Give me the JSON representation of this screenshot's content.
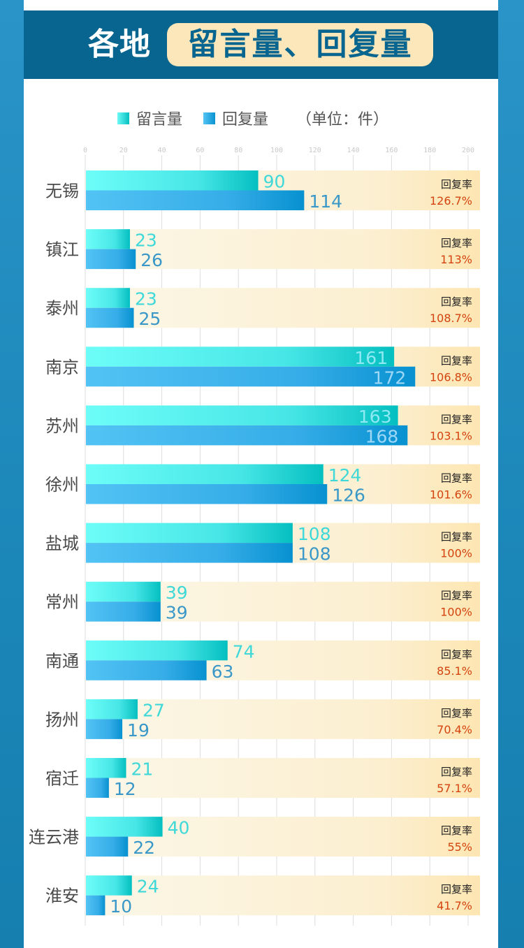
{
  "header": {
    "title_prefix": "各地",
    "title_highlight": "留言量、回复量"
  },
  "legend": {
    "items": [
      {
        "label": "留言量",
        "color": "#2fd6d8"
      },
      {
        "label": "回复量",
        "color": "#1aa5e0"
      }
    ],
    "unit": "（单位：件）"
  },
  "colors": {
    "frame": "#2a94c8",
    "header_bg": "#08658f",
    "pill_bg": "#fbe7b9",
    "rate_value": "#d4430f"
  },
  "chart_data": {
    "type": "bar",
    "orientation": "horizontal",
    "title": "各地留言量、回复量",
    "unit": "件",
    "xlim": [
      0,
      200
    ],
    "xticks": [
      0,
      20,
      40,
      60,
      80,
      100,
      120,
      140,
      160,
      180,
      200
    ],
    "grid": true,
    "legend_position": "top",
    "rate_label": "回复率",
    "categories": [
      "无锡",
      "镇江",
      "泰州",
      "南京",
      "苏州",
      "徐州",
      "盐城",
      "常州",
      "南通",
      "扬州",
      "宿迁",
      "连云港",
      "淮安"
    ],
    "series": [
      {
        "name": "留言量",
        "values": [
          90,
          23,
          23,
          161,
          163,
          124,
          108,
          39,
          74,
          27,
          21,
          40,
          24
        ]
      },
      {
        "name": "回复量",
        "values": [
          114,
          26,
          25,
          172,
          168,
          126,
          108,
          39,
          63,
          19,
          12,
          22,
          10
        ]
      }
    ],
    "reply_rate": [
      "126.7%",
      "113%",
      "108.7%",
      "106.8%",
      "103.1%",
      "101.6%",
      "100%",
      "100%",
      "85.1%",
      "70.4%",
      "57.1%",
      "55%",
      "41.7%"
    ]
  }
}
